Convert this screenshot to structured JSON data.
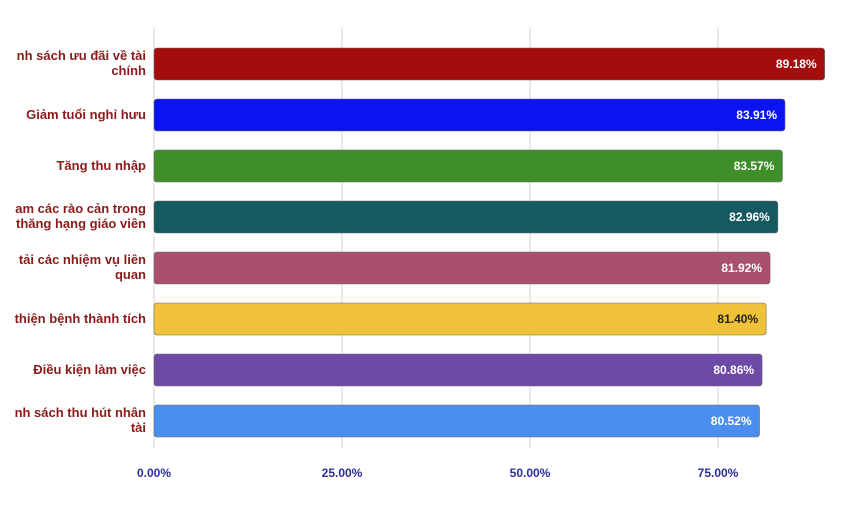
{
  "chart_data": {
    "type": "bar",
    "orientation": "horizontal",
    "categories": [
      [
        "nh sách ưu đãi về tài",
        "chính"
      ],
      [
        "Giảm tuổi nghỉ hưu"
      ],
      [
        "Tăng thu nhập"
      ],
      [
        "am các rào cản trong",
        "thăng hạng giáo viên"
      ],
      [
        "tải các nhiệm vụ liên",
        "quan"
      ],
      [
        "thiện bệnh thành tích"
      ],
      [
        "Điều kiện làm việc"
      ],
      [
        "nh sách thu hút nhân",
        "tài"
      ]
    ],
    "values": [
      89.18,
      83.91,
      83.57,
      82.96,
      81.92,
      81.4,
      80.86,
      80.52
    ],
    "value_labels": [
      "89.18%",
      "83.91%",
      "83.57%",
      "82.96%",
      "81.92%",
      "81.40%",
      "80.86%",
      "80.52%"
    ],
    "colors": [
      "#a50d0d",
      "#0a14f0",
      "#3e8e2a",
      "#165a60",
      "#a8506e",
      "#f0c23a",
      "#6d4aa6",
      "#4a8ef0"
    ],
    "value_label_colors": [
      "#ffffff",
      "#ffffff",
      "#ffffff",
      "#ffffff",
      "#ffffff",
      "#222222",
      "#ffffff",
      "#ffffff"
    ],
    "x_ticks": [
      0,
      25,
      50,
      75
    ],
    "x_tick_labels": [
      "0.00%",
      "25.00%",
      "50.00%",
      "75.00%"
    ],
    "xlim": [
      0,
      90
    ],
    "grid": true
  }
}
